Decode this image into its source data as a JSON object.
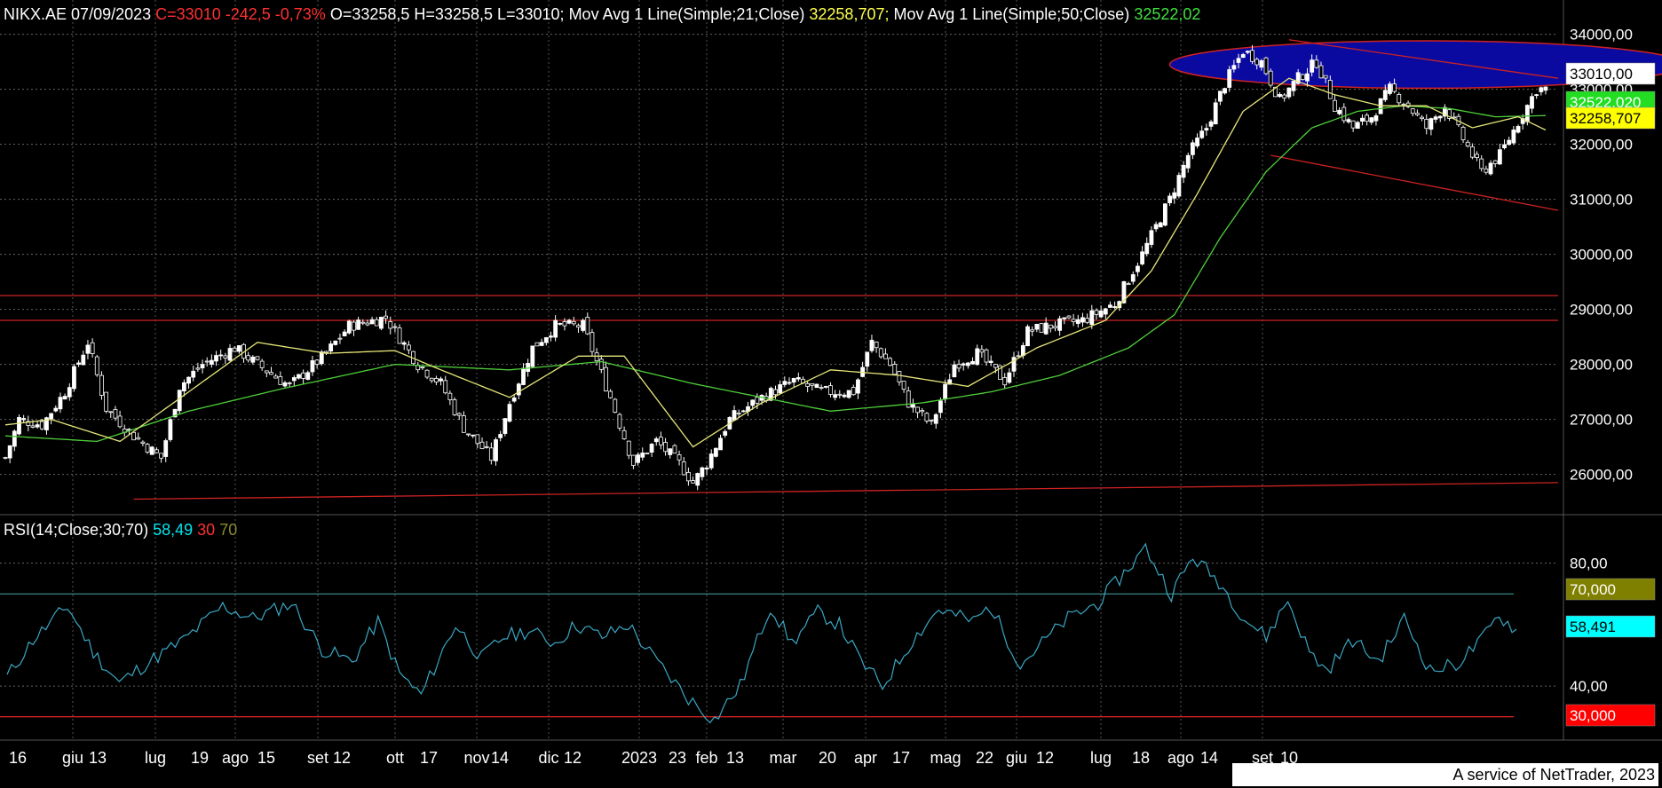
{
  "header": {
    "symbol": "NIKX.AE",
    "date": "07/09/2023",
    "close_text": "C=33010 -242,5 -0,73%",
    "ohl_text": "O=33258,5 H=33258,5 L=33010;",
    "ma21_label": "Mov Avg 1 Line(Simple;21;Close)",
    "ma21_value": "32258,707;",
    "ma50_label": "Mov Avg 1 Line(Simple;50;Close)",
    "ma50_value": "32522,02"
  },
  "rsi_header": {
    "label": "RSI(14;Close;30;70)",
    "value": "58,49",
    "low": "30",
    "high": "70"
  },
  "colors": {
    "background": "#000000",
    "price_up": "#ffffff",
    "ma21": "#e6e67a",
    "ma50": "#4fcf3a",
    "rsi": "#3aa8c4",
    "trendline": "#cc2222",
    "highlight": "#0a0aa0",
    "header_red": "#ff3030",
    "header_yellow": "#ffff4d",
    "header_green": "#40e040",
    "rsi_cyan": "#00e5ee"
  },
  "badges": {
    "last": "33010,00",
    "ma50": "32522,020",
    "ma21": "32258,707",
    "rsi": "58,491",
    "rsi_high": "70,000",
    "rsi_low": "30,000"
  },
  "footer": "A service of NetTrader, 2023",
  "chart_data": [
    {
      "type": "candlestick",
      "title": "NIKX.AE",
      "ylim": [
        25300,
        34300
      ],
      "y_ticks": [
        "34000,00",
        "33000,00",
        "32000,00",
        "31000,00",
        "30000,00",
        "29000,00",
        "28000,00",
        "27000,00",
        "26000,00"
      ],
      "x_ticks": [
        "16",
        "giu",
        "13",
        "lug",
        "19",
        "ago",
        "15",
        "set",
        "12",
        "ott",
        "17",
        "nov",
        "14",
        "dic",
        "12",
        "2023",
        "23",
        "feb",
        "13",
        "mar",
        "20",
        "apr",
        "17",
        "mag",
        "22",
        "giu",
        "12",
        "lug",
        "18",
        "ago",
        "14",
        "set",
        "10"
      ],
      "anchors": [
        [
          0,
          26300
        ],
        [
          3,
          27000
        ],
        [
          8,
          26900
        ],
        [
          13,
          27500
        ],
        [
          18,
          28400
        ],
        [
          22,
          27200
        ],
        [
          28,
          26700
        ],
        [
          34,
          26300
        ],
        [
          38,
          27600
        ],
        [
          43,
          28000
        ],
        [
          50,
          28300
        ],
        [
          55,
          28000
        ],
        [
          62,
          27600
        ],
        [
          70,
          28200
        ],
        [
          75,
          28700
        ],
        [
          83,
          28850
        ],
        [
          90,
          28000
        ],
        [
          95,
          27650
        ],
        [
          100,
          26850
        ],
        [
          106,
          26300
        ],
        [
          110,
          27300
        ],
        [
          115,
          28300
        ],
        [
          120,
          28700
        ],
        [
          126,
          28700
        ],
        [
          132,
          27400
        ],
        [
          137,
          26200
        ],
        [
          142,
          26600
        ],
        [
          147,
          26200
        ],
        [
          150,
          25850
        ],
        [
          153,
          26200
        ],
        [
          158,
          27000
        ],
        [
          165,
          27400
        ],
        [
          172,
          27700
        ],
        [
          178,
          27500
        ],
        [
          185,
          27500
        ],
        [
          189,
          28400
        ],
        [
          193,
          28000
        ],
        [
          197,
          27300
        ],
        [
          202,
          26900
        ],
        [
          207,
          28000
        ],
        [
          212,
          28200
        ],
        [
          218,
          27700
        ],
        [
          223,
          28600
        ],
        [
          228,
          28700
        ],
        [
          235,
          28800
        ],
        [
          242,
          29100
        ],
        [
          248,
          30000
        ],
        [
          254,
          31000
        ],
        [
          258,
          31800
        ],
        [
          262,
          32300
        ],
        [
          266,
          33100
        ],
        [
          270,
          33700
        ],
        [
          274,
          33500
        ],
        [
          278,
          32800
        ],
        [
          282,
          33200
        ],
        [
          286,
          33500
        ],
        [
          290,
          32700
        ],
        [
          294,
          32300
        ],
        [
          298,
          32500
        ],
        [
          302,
          33000
        ],
        [
          306,
          32700
        ],
        [
          310,
          32300
        ],
        [
          314,
          32700
        ],
        [
          318,
          32100
        ],
        [
          322,
          31500
        ],
        [
          326,
          31800
        ],
        [
          330,
          32400
        ],
        [
          334,
          33000
        ],
        [
          336,
          33010
        ]
      ],
      "ma21_anchors": [
        [
          0,
          26900
        ],
        [
          10,
          27000
        ],
        [
          25,
          26600
        ],
        [
          40,
          27500
        ],
        [
          55,
          28400
        ],
        [
          70,
          28200
        ],
        [
          85,
          28250
        ],
        [
          95,
          27900
        ],
        [
          110,
          27400
        ],
        [
          125,
          28150
        ],
        [
          135,
          28150
        ],
        [
          150,
          26500
        ],
        [
          165,
          27300
        ],
        [
          180,
          27900
        ],
        [
          195,
          27800
        ],
        [
          210,
          27600
        ],
        [
          225,
          28300
        ],
        [
          240,
          28800
        ],
        [
          250,
          29700
        ],
        [
          260,
          31100
        ],
        [
          270,
          32600
        ],
        [
          280,
          33200
        ],
        [
          290,
          32900
        ],
        [
          300,
          32700
        ],
        [
          310,
          32700
        ],
        [
          320,
          32300
        ],
        [
          330,
          32500
        ],
        [
          336,
          32259
        ]
      ],
      "ma50_anchors": [
        [
          0,
          26700
        ],
        [
          20,
          26600
        ],
        [
          40,
          27150
        ],
        [
          60,
          27550
        ],
        [
          85,
          28000
        ],
        [
          110,
          27900
        ],
        [
          130,
          28050
        ],
        [
          150,
          27650
        ],
        [
          165,
          27400
        ],
        [
          180,
          27150
        ],
        [
          200,
          27300
        ],
        [
          215,
          27500
        ],
        [
          230,
          27800
        ],
        [
          245,
          28300
        ],
        [
          255,
          28900
        ],
        [
          265,
          30300
        ],
        [
          275,
          31500
        ],
        [
          285,
          32300
        ],
        [
          295,
          32600
        ],
        [
          305,
          32700
        ],
        [
          315,
          32650
        ],
        [
          325,
          32500
        ],
        [
          336,
          32522
        ]
      ],
      "horizontal_lines": [
        29250,
        28800
      ],
      "support_line": [
        [
          28,
          25550
        ],
        [
          336,
          25850
        ]
      ],
      "channel_upper": [
        [
          280,
          33900
        ],
        [
          336,
          33200
        ]
      ],
      "channel_lower": [
        [
          276,
          31800
        ],
        [
          336,
          30800
        ]
      ],
      "highlight_ellipse": {
        "x_center": 310,
        "y_center": 33450,
        "x_radius": 56,
        "y_radius": 430
      }
    },
    {
      "type": "line",
      "title": "RSI(14;Close;30;70)",
      "ylim": [
        25,
        90
      ],
      "y_ticks": [
        "80,00",
        "40,00"
      ],
      "levels": [
        70,
        30
      ],
      "rsi_anchors": [
        [
          0,
          43
        ],
        [
          6,
          55
        ],
        [
          14,
          66
        ],
        [
          20,
          51
        ],
        [
          26,
          41
        ],
        [
          33,
          48
        ],
        [
          41,
          55
        ],
        [
          50,
          66
        ],
        [
          57,
          62
        ],
        [
          66,
          67
        ],
        [
          73,
          52
        ],
        [
          80,
          48
        ],
        [
          86,
          61
        ],
        [
          91,
          44
        ],
        [
          96,
          37
        ],
        [
          104,
          60
        ],
        [
          110,
          49
        ],
        [
          115,
          56
        ],
        [
          121,
          58
        ],
        [
          127,
          54
        ],
        [
          132,
          60
        ],
        [
          138,
          56
        ],
        [
          144,
          60
        ],
        [
          150,
          49
        ],
        [
          158,
          36
        ],
        [
          164,
          29
        ],
        [
          170,
          40
        ],
        [
          177,
          66
        ],
        [
          182,
          54
        ],
        [
          188,
          64
        ],
        [
          193,
          60
        ],
        [
          198,
          48
        ],
        [
          203,
          40
        ],
        [
          210,
          55
        ],
        [
          216,
          65
        ],
        [
          224,
          61
        ],
        [
          228,
          66
        ],
        [
          235,
          47
        ],
        [
          240,
          54
        ],
        [
          246,
          62
        ],
        [
          253,
          67
        ],
        [
          258,
          75
        ],
        [
          264,
          85
        ],
        [
          270,
          70
        ],
        [
          275,
          82
        ],
        [
          281,
          74
        ],
        [
          287,
          62
        ],
        [
          292,
          56
        ],
        [
          297,
          68
        ],
        [
          302,
          51
        ],
        [
          306,
          45
        ],
        [
          312,
          55
        ],
        [
          318,
          48
        ],
        [
          324,
          62
        ],
        [
          330,
          45
        ],
        [
          336,
          47
        ],
        [
          342,
          55
        ],
        [
          346,
          63
        ],
        [
          350,
          58
        ]
      ]
    }
  ]
}
